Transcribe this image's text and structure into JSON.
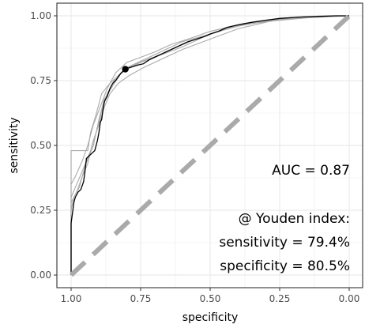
{
  "chart_data": {
    "type": "line",
    "xlabel": "specificity",
    "ylabel": "sensitivity",
    "xlim": [
      1.0,
      0.0
    ],
    "ylim": [
      0.0,
      1.0
    ],
    "x_reversed": true,
    "grid": true,
    "x_ticks": [
      1.0,
      0.75,
      0.5,
      0.25,
      0.0
    ],
    "x_tick_labels": [
      "1.00",
      "0.75",
      "0.50",
      "0.25",
      "0.00"
    ],
    "y_ticks": [
      0.0,
      0.25,
      0.5,
      0.75,
      1.0
    ],
    "y_tick_labels": [
      "0.00",
      "0.25",
      "0.50",
      "0.75",
      "1.00"
    ],
    "colors": {
      "main_curve": "#000000",
      "resample_curves": "#aaaaaa",
      "diagonal": "#aaaaaa",
      "grid": "#ebebeb",
      "panel_border": "#333333"
    },
    "annotations": {
      "auc": "AUC = 0.87",
      "youden_header": "@ Youden index:",
      "sensitivity": "sensitivity = 79.4%",
      "specificity": "specificity = 80.5%"
    },
    "youden_point": {
      "specificity": 0.805,
      "sensitivity": 0.794
    },
    "series": [
      {
        "role": "main",
        "points": [
          [
            1.0,
            0.0
          ],
          [
            1.0,
            0.2
          ],
          [
            0.995,
            0.24
          ],
          [
            0.99,
            0.28
          ],
          [
            0.985,
            0.3
          ],
          [
            0.975,
            0.32
          ],
          [
            0.965,
            0.33
          ],
          [
            0.955,
            0.36
          ],
          [
            0.95,
            0.4
          ],
          [
            0.945,
            0.45
          ],
          [
            0.935,
            0.46
          ],
          [
            0.925,
            0.47
          ],
          [
            0.915,
            0.48
          ],
          [
            0.91,
            0.5
          ],
          [
            0.905,
            0.52
          ],
          [
            0.9,
            0.55
          ],
          [
            0.895,
            0.59
          ],
          [
            0.89,
            0.6
          ],
          [
            0.885,
            0.64
          ],
          [
            0.88,
            0.67
          ],
          [
            0.87,
            0.69
          ],
          [
            0.86,
            0.72
          ],
          [
            0.85,
            0.74
          ],
          [
            0.84,
            0.75
          ],
          [
            0.83,
            0.765
          ],
          [
            0.82,
            0.78
          ],
          [
            0.805,
            0.794
          ],
          [
            0.79,
            0.8
          ],
          [
            0.775,
            0.805
          ],
          [
            0.76,
            0.81
          ],
          [
            0.74,
            0.815
          ],
          [
            0.72,
            0.83
          ],
          [
            0.7,
            0.84
          ],
          [
            0.68,
            0.85
          ],
          [
            0.66,
            0.86
          ],
          [
            0.64,
            0.87
          ],
          [
            0.62,
            0.88
          ],
          [
            0.6,
            0.89
          ],
          [
            0.58,
            0.9
          ],
          [
            0.55,
            0.91
          ],
          [
            0.52,
            0.92
          ],
          [
            0.5,
            0.93
          ],
          [
            0.47,
            0.94
          ],
          [
            0.44,
            0.955
          ],
          [
            0.4,
            0.965
          ],
          [
            0.35,
            0.975
          ],
          [
            0.3,
            0.983
          ],
          [
            0.25,
            0.99
          ],
          [
            0.18,
            0.995
          ],
          [
            0.1,
            0.998
          ],
          [
            0.05,
            1.0
          ],
          [
            0.0,
            1.0
          ]
        ]
      },
      {
        "role": "resample",
        "points": [
          [
            1.0,
            0.0
          ],
          [
            1.0,
            0.3
          ],
          [
            0.98,
            0.35
          ],
          [
            0.96,
            0.4
          ],
          [
            0.93,
            0.48
          ],
          [
            0.91,
            0.55
          ],
          [
            0.89,
            0.63
          ],
          [
            0.87,
            0.7
          ],
          [
            0.84,
            0.76
          ],
          [
            0.8,
            0.8
          ],
          [
            0.76,
            0.82
          ],
          [
            0.72,
            0.84
          ],
          [
            0.66,
            0.87
          ],
          [
            0.6,
            0.9
          ],
          [
            0.5,
            0.93
          ],
          [
            0.4,
            0.96
          ],
          [
            0.3,
            0.98
          ],
          [
            0.15,
            0.995
          ],
          [
            0.0,
            1.0
          ]
        ]
      },
      {
        "role": "resample",
        "points": [
          [
            1.0,
            0.0
          ],
          [
            1.0,
            0.25
          ],
          [
            0.99,
            0.3
          ],
          [
            0.97,
            0.34
          ],
          [
            0.95,
            0.42
          ],
          [
            0.92,
            0.5
          ],
          [
            0.9,
            0.6
          ],
          [
            0.88,
            0.68
          ],
          [
            0.85,
            0.73
          ],
          [
            0.82,
            0.78
          ],
          [
            0.78,
            0.81
          ],
          [
            0.73,
            0.83
          ],
          [
            0.68,
            0.85
          ],
          [
            0.62,
            0.88
          ],
          [
            0.55,
            0.91
          ],
          [
            0.45,
            0.95
          ],
          [
            0.35,
            0.97
          ],
          [
            0.2,
            0.99
          ],
          [
            0.0,
            1.0
          ]
        ]
      },
      {
        "role": "resample",
        "points": [
          [
            1.0,
            0.0
          ],
          [
            1.0,
            0.35
          ],
          [
            0.985,
            0.38
          ],
          [
            0.96,
            0.44
          ],
          [
            0.94,
            0.5
          ],
          [
            0.92,
            0.58
          ],
          [
            0.895,
            0.65
          ],
          [
            0.87,
            0.72
          ],
          [
            0.84,
            0.78
          ],
          [
            0.8,
            0.82
          ],
          [
            0.75,
            0.84
          ],
          [
            0.7,
            0.86
          ],
          [
            0.64,
            0.89
          ],
          [
            0.58,
            0.91
          ],
          [
            0.5,
            0.94
          ],
          [
            0.38,
            0.97
          ],
          [
            0.25,
            0.99
          ],
          [
            0.1,
            1.0
          ],
          [
            0.0,
            1.0
          ]
        ]
      },
      {
        "role": "resample",
        "points": [
          [
            1.0,
            0.0
          ],
          [
            1.0,
            0.48
          ],
          [
            0.94,
            0.48
          ],
          [
            0.93,
            0.55
          ],
          [
            0.91,
            0.62
          ],
          [
            0.89,
            0.7
          ],
          [
            0.86,
            0.74
          ],
          [
            0.83,
            0.77
          ],
          [
            0.79,
            0.8
          ],
          [
            0.75,
            0.82
          ],
          [
            0.7,
            0.84
          ],
          [
            0.65,
            0.86
          ],
          [
            0.6,
            0.88
          ],
          [
            0.52,
            0.92
          ],
          [
            0.42,
            0.96
          ],
          [
            0.3,
            0.98
          ],
          [
            0.18,
            0.995
          ],
          [
            0.0,
            1.0
          ]
        ]
      },
      {
        "role": "resample",
        "points": [
          [
            1.0,
            0.0
          ],
          [
            1.0,
            0.28
          ],
          [
            0.98,
            0.32
          ],
          [
            0.96,
            0.38
          ],
          [
            0.94,
            0.43
          ],
          [
            0.92,
            0.52
          ],
          [
            0.9,
            0.58
          ],
          [
            0.88,
            0.65
          ],
          [
            0.86,
            0.7
          ],
          [
            0.83,
            0.74
          ],
          [
            0.79,
            0.77
          ],
          [
            0.74,
            0.8
          ],
          [
            0.68,
            0.83
          ],
          [
            0.6,
            0.87
          ],
          [
            0.5,
            0.91
          ],
          [
            0.4,
            0.95
          ],
          [
            0.28,
            0.98
          ],
          [
            0.12,
            0.995
          ],
          [
            0.0,
            1.0
          ]
        ]
      }
    ]
  }
}
